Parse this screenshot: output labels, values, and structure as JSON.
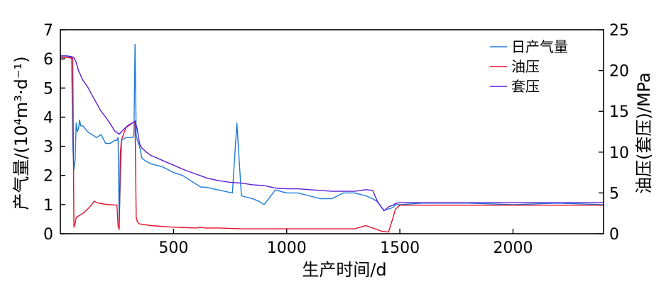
{
  "chart_data": {
    "type": "line",
    "xlabel": "生产时间/d",
    "ylabel_left": "产气量/(10⁴m³·d⁻¹)",
    "ylabel_right": "油压(套压)/MPa",
    "xlim": [
      0,
      2400
    ],
    "ylim_left": [
      0,
      7
    ],
    "ylim_right": [
      0,
      25
    ],
    "x_ticks": [
      500,
      1000,
      1500,
      2000
    ],
    "y_left_ticks": [
      0,
      1,
      2,
      3,
      4,
      5,
      6,
      7
    ],
    "y_right_ticks": [
      0,
      5,
      10,
      15,
      20,
      25
    ],
    "legend_position": "top-right",
    "grid": false,
    "series": [
      {
        "name": "日产气量",
        "axis": "left",
        "color": "#1e7ad6",
        "x": [
          0,
          15,
          30,
          50,
          55,
          60,
          65,
          70,
          75,
          80,
          85,
          90,
          100,
          110,
          120,
          140,
          160,
          180,
          200,
          220,
          240,
          250,
          255,
          260,
          270,
          290,
          310,
          320,
          325,
          330,
          335,
          340,
          350,
          360,
          375,
          400,
          450,
          500,
          540,
          560,
          600,
          620,
          640,
          700,
          760,
          780,
          800,
          850,
          880,
          900,
          950,
          1000,
          1050,
          1100,
          1150,
          1200,
          1250,
          1300,
          1350,
          1380,
          1400,
          1430,
          1450,
          1470,
          1480,
          1500,
          1600,
          1800,
          2000,
          2200,
          2400
        ],
        "y": [
          6.1,
          6.1,
          6.1,
          6.05,
          3.0,
          2.2,
          2.5,
          3.8,
          3.5,
          3.6,
          3.9,
          3.7,
          3.7,
          3.6,
          3.5,
          3.4,
          3.3,
          3.4,
          3.1,
          3.1,
          3.2,
          3.2,
          3.3,
          0.4,
          3.2,
          3.3,
          3.3,
          3.3,
          3.4,
          6.5,
          3.4,
          3.2,
          3.0,
          2.6,
          2.5,
          2.4,
          2.3,
          2.1,
          2.0,
          1.9,
          1.7,
          1.6,
          1.6,
          1.5,
          1.4,
          3.8,
          1.3,
          1.2,
          1.1,
          1.0,
          1.5,
          1.4,
          1.4,
          1.3,
          1.2,
          1.2,
          1.4,
          1.4,
          1.3,
          1.2,
          1.1,
          0.8,
          0.85,
          0.9,
          1.0,
          1.0,
          1.05,
          1.05,
          1.0,
          1.05,
          1.0
        ]
      },
      {
        "name": "油压",
        "axis": "right",
        "color": "#e8102a",
        "x": [
          0,
          10,
          30,
          55,
          60,
          62,
          65,
          70,
          100,
          120,
          140,
          150,
          160,
          200,
          250,
          255,
          260,
          265,
          270,
          290,
          300,
          320,
          330,
          335,
          340,
          345,
          350,
          400,
          500,
          600,
          620,
          640,
          700,
          800,
          900,
          1000,
          1050,
          1100,
          1200,
          1300,
          1350,
          1400,
          1420,
          1450,
          1470,
          1480,
          1500,
          1600,
          1800,
          2000,
          2200,
          2400
        ],
        "y": [
          21.6,
          21.6,
          21.6,
          21.5,
          0.8,
          1.0,
          1.2,
          2.0,
          2.5,
          3.0,
          3.6,
          4.0,
          3.8,
          3.6,
          3.5,
          1.0,
          0.5,
          10.0,
          11.5,
          13.0,
          13.2,
          13.6,
          13.8,
          2.0,
          1.5,
          1.3,
          1.2,
          1.0,
          0.8,
          0.7,
          0.8,
          0.7,
          0.7,
          0.6,
          0.6,
          0.6,
          0.6,
          0.6,
          0.6,
          0.6,
          1.0,
          0.5,
          0.3,
          0.2,
          2.0,
          3.0,
          3.5,
          3.5,
          3.5,
          3.5,
          3.5,
          3.5
        ]
      },
      {
        "name": "套压",
        "axis": "right",
        "color": "#5a1ed6",
        "x": [
          0,
          15,
          30,
          50,
          60,
          70,
          80,
          100,
          120,
          140,
          160,
          180,
          200,
          220,
          240,
          260,
          280,
          300,
          320,
          330,
          340,
          350,
          360,
          380,
          400,
          450,
          500,
          550,
          600,
          650,
          700,
          750,
          800,
          850,
          900,
          950,
          1000,
          1050,
          1100,
          1150,
          1200,
          1250,
          1300,
          1350,
          1380,
          1400,
          1430,
          1450,
          1470,
          1480,
          1500,
          1600,
          1800,
          2000,
          2200,
          2400
        ],
        "y": [
          21.8,
          21.8,
          21.8,
          21.7,
          21.6,
          21.0,
          20.0,
          18.8,
          18.0,
          17.0,
          16.0,
          15.0,
          14.3,
          13.5,
          12.6,
          12.2,
          12.8,
          13.3,
          13.6,
          13.8,
          12.8,
          11.0,
          10.5,
          10.0,
          9.6,
          9.0,
          8.4,
          7.8,
          7.3,
          6.8,
          6.5,
          6.3,
          6.2,
          6.0,
          5.9,
          5.6,
          5.5,
          5.5,
          5.4,
          5.3,
          5.2,
          5.2,
          5.2,
          5.4,
          5.3,
          4.0,
          2.8,
          3.3,
          3.5,
          3.7,
          3.8,
          3.8,
          3.8,
          3.8,
          3.8,
          3.8
        ]
      }
    ]
  }
}
